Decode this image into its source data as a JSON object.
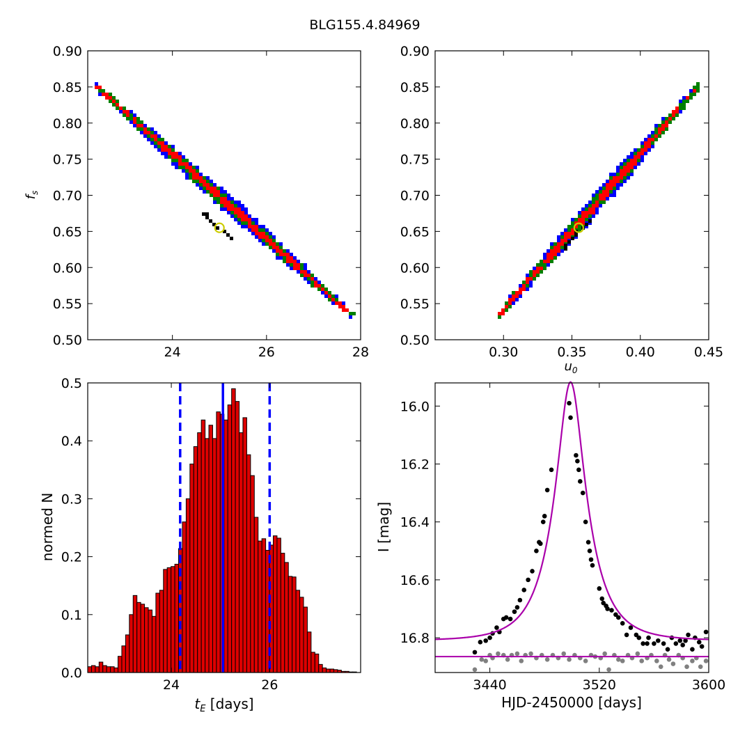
{
  "figure_title": "BLG155.4.84969",
  "colors": {
    "contour_outer": "#0000ff",
    "contour_mid": "#008000",
    "contour_inner": "#ff0000",
    "best_fit_points": "#000000",
    "best_fit_marker": "#cccc00",
    "histogram_bar": "#dd0000",
    "median_line": "#0000ff",
    "model_curve": "#aa00aa",
    "data_points": "#000000",
    "residual_points": "#808080"
  },
  "panels": {
    "top_left": {
      "ylabel": "f_s"
    },
    "top_right": {
      "xlabel": "u_0"
    },
    "bottom_left": {
      "ylabel": "normed N",
      "xlabel_sym": "t_E",
      "xlabel_unit": " [days]"
    },
    "bottom_right": {
      "ylabel": "I [mag]",
      "xlabel": "HJD-2450000 [days]"
    }
  },
  "chart_data": [
    {
      "type": "heatmap",
      "panel": "top_left",
      "title": "",
      "xlabel": "",
      "ylabel": "f_s",
      "xlim": [
        22.2,
        28
      ],
      "ylim": [
        0.5,
        0.9
      ],
      "xticks": [
        "24",
        "26",
        "28"
      ],
      "yticks": [
        "0.50",
        "0.55",
        "0.60",
        "0.65",
        "0.70",
        "0.75",
        "0.80",
        "0.85",
        "0.90"
      ],
      "contour_centerline": [
        [
          22.4,
          0.85
        ],
        [
          27.8,
          0.535
        ]
      ],
      "best_fit": {
        "x": 25.0,
        "y": 0.655
      }
    },
    {
      "type": "heatmap",
      "panel": "top_right",
      "title": "",
      "xlabel": "u_0",
      "ylabel": "",
      "xlim": [
        0.25,
        0.45
      ],
      "ylim": [
        0.5,
        0.9
      ],
      "xticks": [
        "0.30",
        "0.35",
        "0.40",
        "0.45"
      ],
      "yticks": [
        "0.50",
        "0.55",
        "0.60",
        "0.65",
        "0.70",
        "0.75",
        "0.80",
        "0.85",
        "0.90"
      ],
      "contour_centerline": [
        [
          0.297,
          0.535
        ],
        [
          0.442,
          0.85
        ]
      ],
      "best_fit": {
        "x": 0.355,
        "y": 0.655
      }
    },
    {
      "type": "bar",
      "panel": "bottom_left",
      "title": "",
      "xlabel": "t_E [days]",
      "ylabel": "normed N",
      "xlim": [
        22.3,
        27.85
      ],
      "ylim": [
        0,
        0.5
      ],
      "xticks": [
        "24",
        "26"
      ],
      "yticks": [
        "0.0",
        "0.1",
        "0.2",
        "0.3",
        "0.4",
        "0.5"
      ],
      "bin_start": 22.3,
      "bin_width": 0.077,
      "values": [
        0.01,
        0.012,
        0.01,
        0.018,
        0.012,
        0.01,
        0.01,
        0.008,
        0.028,
        0.046,
        0.065,
        0.1,
        0.133,
        0.121,
        0.118,
        0.112,
        0.108,
        0.097,
        0.137,
        0.142,
        0.178,
        0.181,
        0.183,
        0.187,
        0.214,
        0.26,
        0.3,
        0.36,
        0.39,
        0.414,
        0.436,
        0.404,
        0.427,
        0.404,
        0.45,
        0.446,
        0.436,
        0.462,
        0.49,
        0.468,
        0.414,
        0.44,
        0.376,
        0.34,
        0.268,
        0.227,
        0.231,
        0.211,
        0.22,
        0.236,
        0.232,
        0.206,
        0.19,
        0.166,
        0.165,
        0.142,
        0.13,
        0.113,
        0.07,
        0.035,
        0.032,
        0.014,
        0.008,
        0.006,
        0.006,
        0.005,
        0.004,
        0.002,
        0.002,
        0.001,
        0.001
      ],
      "median": 25.05,
      "interval": [
        24.18,
        26.0
      ]
    },
    {
      "type": "scatter",
      "panel": "bottom_right",
      "title": "",
      "xlabel": "HJD-2450000 [days]",
      "ylabel": "I [mag]",
      "xlim": [
        3400,
        3600
      ],
      "ylim": [
        16.92,
        15.92
      ],
      "xticks": [
        "3440",
        "3520",
        "3600"
      ],
      "yticks": [
        "16.0",
        "16.2",
        "16.4",
        "16.6",
        "16.8"
      ],
      "model": {
        "t0": 3499.0,
        "u0": 0.355,
        "tE": 25.0,
        "fs": 0.655,
        "baseline": 16.81
      },
      "residual_baseline": 16.865,
      "data_points": [
        [
          3429,
          16.85
        ],
        [
          3433,
          16.815
        ],
        [
          3437,
          16.81
        ],
        [
          3440,
          16.8
        ],
        [
          3442,
          16.785
        ],
        [
          3445,
          16.765
        ],
        [
          3447,
          16.78
        ],
        [
          3450,
          16.735
        ],
        [
          3452,
          16.73
        ],
        [
          3455,
          16.735
        ],
        [
          3458,
          16.71
        ],
        [
          3460,
          16.695
        ],
        [
          3462,
          16.67
        ],
        [
          3465,
          16.635
        ],
        [
          3468,
          16.6
        ],
        [
          3471,
          16.57
        ],
        [
          3474,
          16.5
        ],
        [
          3476,
          16.47
        ],
        [
          3477,
          16.475
        ],
        [
          3479,
          16.4
        ],
        [
          3480,
          16.38
        ],
        [
          3482,
          16.29
        ],
        [
          3485,
          16.22
        ],
        [
          3498,
          15.99
        ],
        [
          3499,
          16.04
        ],
        [
          3503,
          16.17
        ],
        [
          3504,
          16.19
        ],
        [
          3505,
          16.22
        ],
        [
          3506,
          16.26
        ],
        [
          3508,
          16.3
        ],
        [
          3510,
          16.4
        ],
        [
          3512,
          16.47
        ],
        [
          3513,
          16.5
        ],
        [
          3514,
          16.53
        ],
        [
          3515,
          16.55
        ],
        [
          3520,
          16.63
        ],
        [
          3522,
          16.665
        ],
        [
          3523,
          16.68
        ],
        [
          3525,
          16.69
        ],
        [
          3526,
          16.7
        ],
        [
          3529,
          16.705
        ],
        [
          3532,
          16.72
        ],
        [
          3534,
          16.73
        ],
        [
          3537,
          16.75
        ],
        [
          3540,
          16.79
        ],
        [
          3543,
          16.765
        ],
        [
          3547,
          16.79
        ],
        [
          3549,
          16.8
        ],
        [
          3552,
          16.82
        ],
        [
          3555,
          16.82
        ],
        [
          3556,
          16.8
        ],
        [
          3560,
          16.82
        ],
        [
          3563,
          16.81
        ],
        [
          3567,
          16.82
        ],
        [
          3570,
          16.84
        ],
        [
          3573,
          16.8
        ],
        [
          3576,
          16.82
        ],
        [
          3579,
          16.81
        ],
        [
          3581,
          16.825
        ],
        [
          3583,
          16.81
        ],
        [
          3585,
          16.79
        ],
        [
          3588,
          16.84
        ],
        [
          3590,
          16.8
        ],
        [
          3593,
          16.815
        ],
        [
          3595,
          16.83
        ],
        [
          3598,
          16.78
        ]
      ],
      "residual_points": [
        [
          3429,
          16.91
        ],
        [
          3434,
          16.875
        ],
        [
          3437,
          16.88
        ],
        [
          3440,
          16.86
        ],
        [
          3442,
          16.87
        ],
        [
          3446,
          16.855
        ],
        [
          3450,
          16.86
        ],
        [
          3453,
          16.875
        ],
        [
          3456,
          16.86
        ],
        [
          3460,
          16.855
        ],
        [
          3463,
          16.88
        ],
        [
          3466,
          16.86
        ],
        [
          3470,
          16.855
        ],
        [
          3474,
          16.87
        ],
        [
          3478,
          16.86
        ],
        [
          3482,
          16.875
        ],
        [
          3486,
          16.86
        ],
        [
          3490,
          16.87
        ],
        [
          3494,
          16.855
        ],
        [
          3498,
          16.875
        ],
        [
          3502,
          16.86
        ],
        [
          3506,
          16.87
        ],
        [
          3510,
          16.88
        ],
        [
          3514,
          16.86
        ],
        [
          3517,
          16.865
        ],
        [
          3521,
          16.87
        ],
        [
          3524,
          16.855
        ],
        [
          3527,
          16.91
        ],
        [
          3531,
          16.86
        ],
        [
          3534,
          16.875
        ],
        [
          3537,
          16.88
        ],
        [
          3541,
          16.86
        ],
        [
          3544,
          16.87
        ],
        [
          3548,
          16.855
        ],
        [
          3551,
          16.88
        ],
        [
          3555,
          16.87
        ],
        [
          3558,
          16.86
        ],
        [
          3562,
          16.88
        ],
        [
          3565,
          16.9
        ],
        [
          3568,
          16.86
        ],
        [
          3571,
          16.875
        ],
        [
          3574,
          16.89
        ],
        [
          3578,
          16.86
        ],
        [
          3581,
          16.87
        ],
        [
          3584,
          16.9
        ],
        [
          3588,
          16.88
        ],
        [
          3591,
          16.87
        ],
        [
          3594,
          16.9
        ],
        [
          3598,
          16.88
        ]
      ]
    }
  ]
}
